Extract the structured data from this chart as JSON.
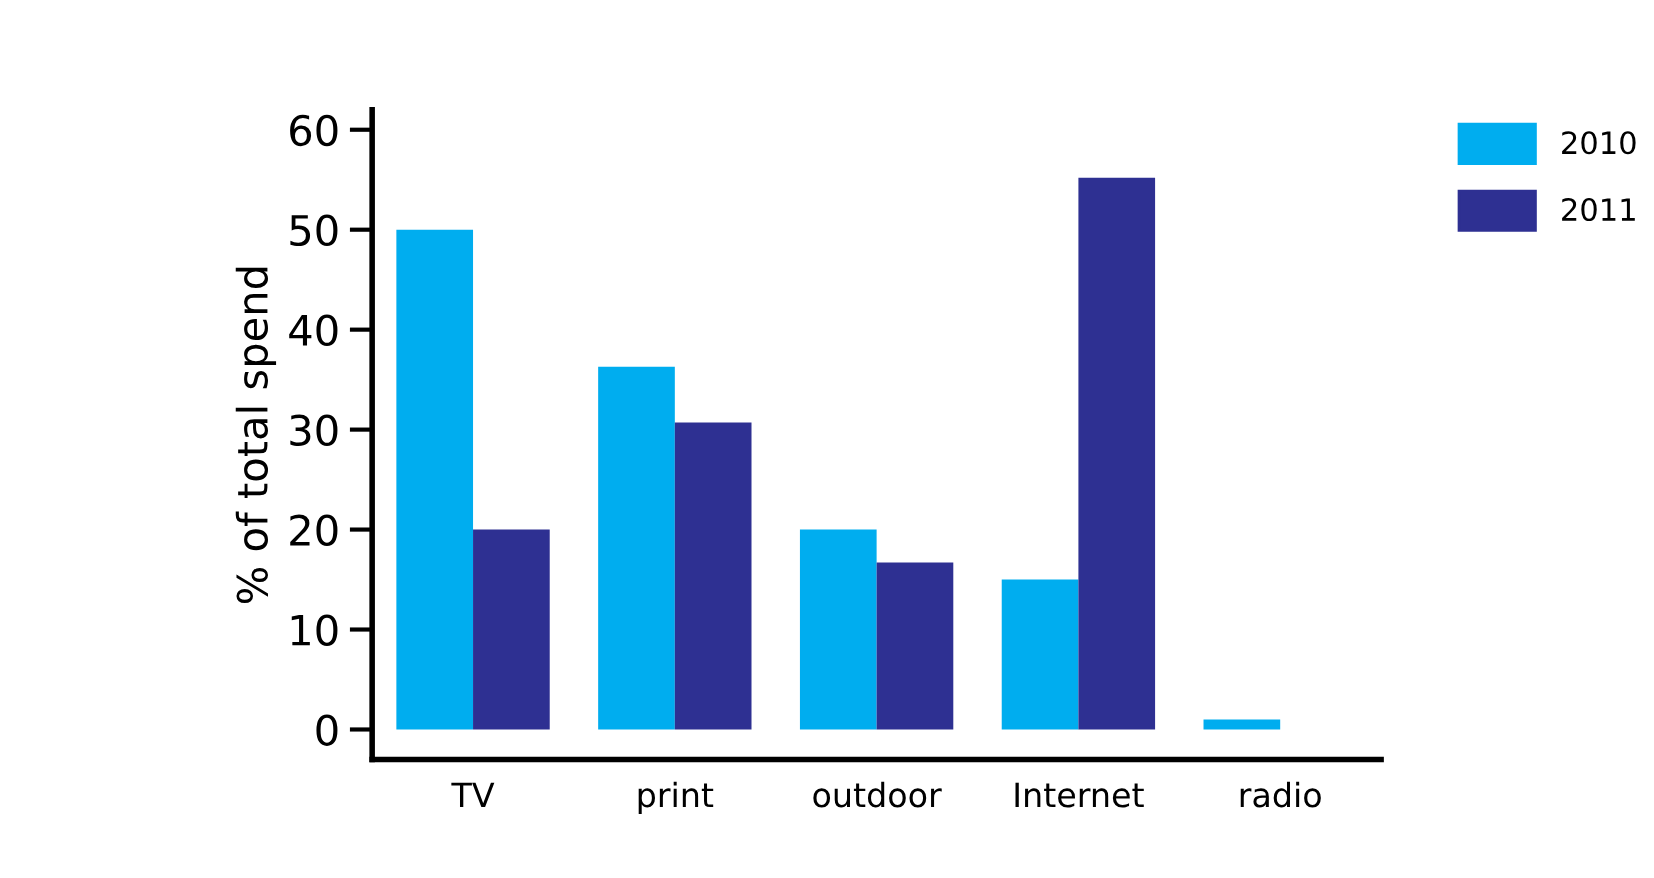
{
  "chart_data": {
    "type": "bar",
    "ylabel": "% of total spend",
    "categories": [
      "TV",
      "print",
      "outdoor",
      "Internet",
      "radio"
    ],
    "series": [
      {
        "name": "2010",
        "color": "#00adef",
        "values": [
          50,
          36.3,
          20,
          15,
          1
        ]
      },
      {
        "name": "2011",
        "color": "#2e3092",
        "values": [
          20,
          30.7,
          16.7,
          55.2,
          0
        ]
      }
    ],
    "ylim": [
      -3,
      62
    ],
    "yticks": [
      0,
      10,
      20,
      30,
      40,
      50,
      60
    ],
    "grid": false,
    "legend": "top right"
  }
}
